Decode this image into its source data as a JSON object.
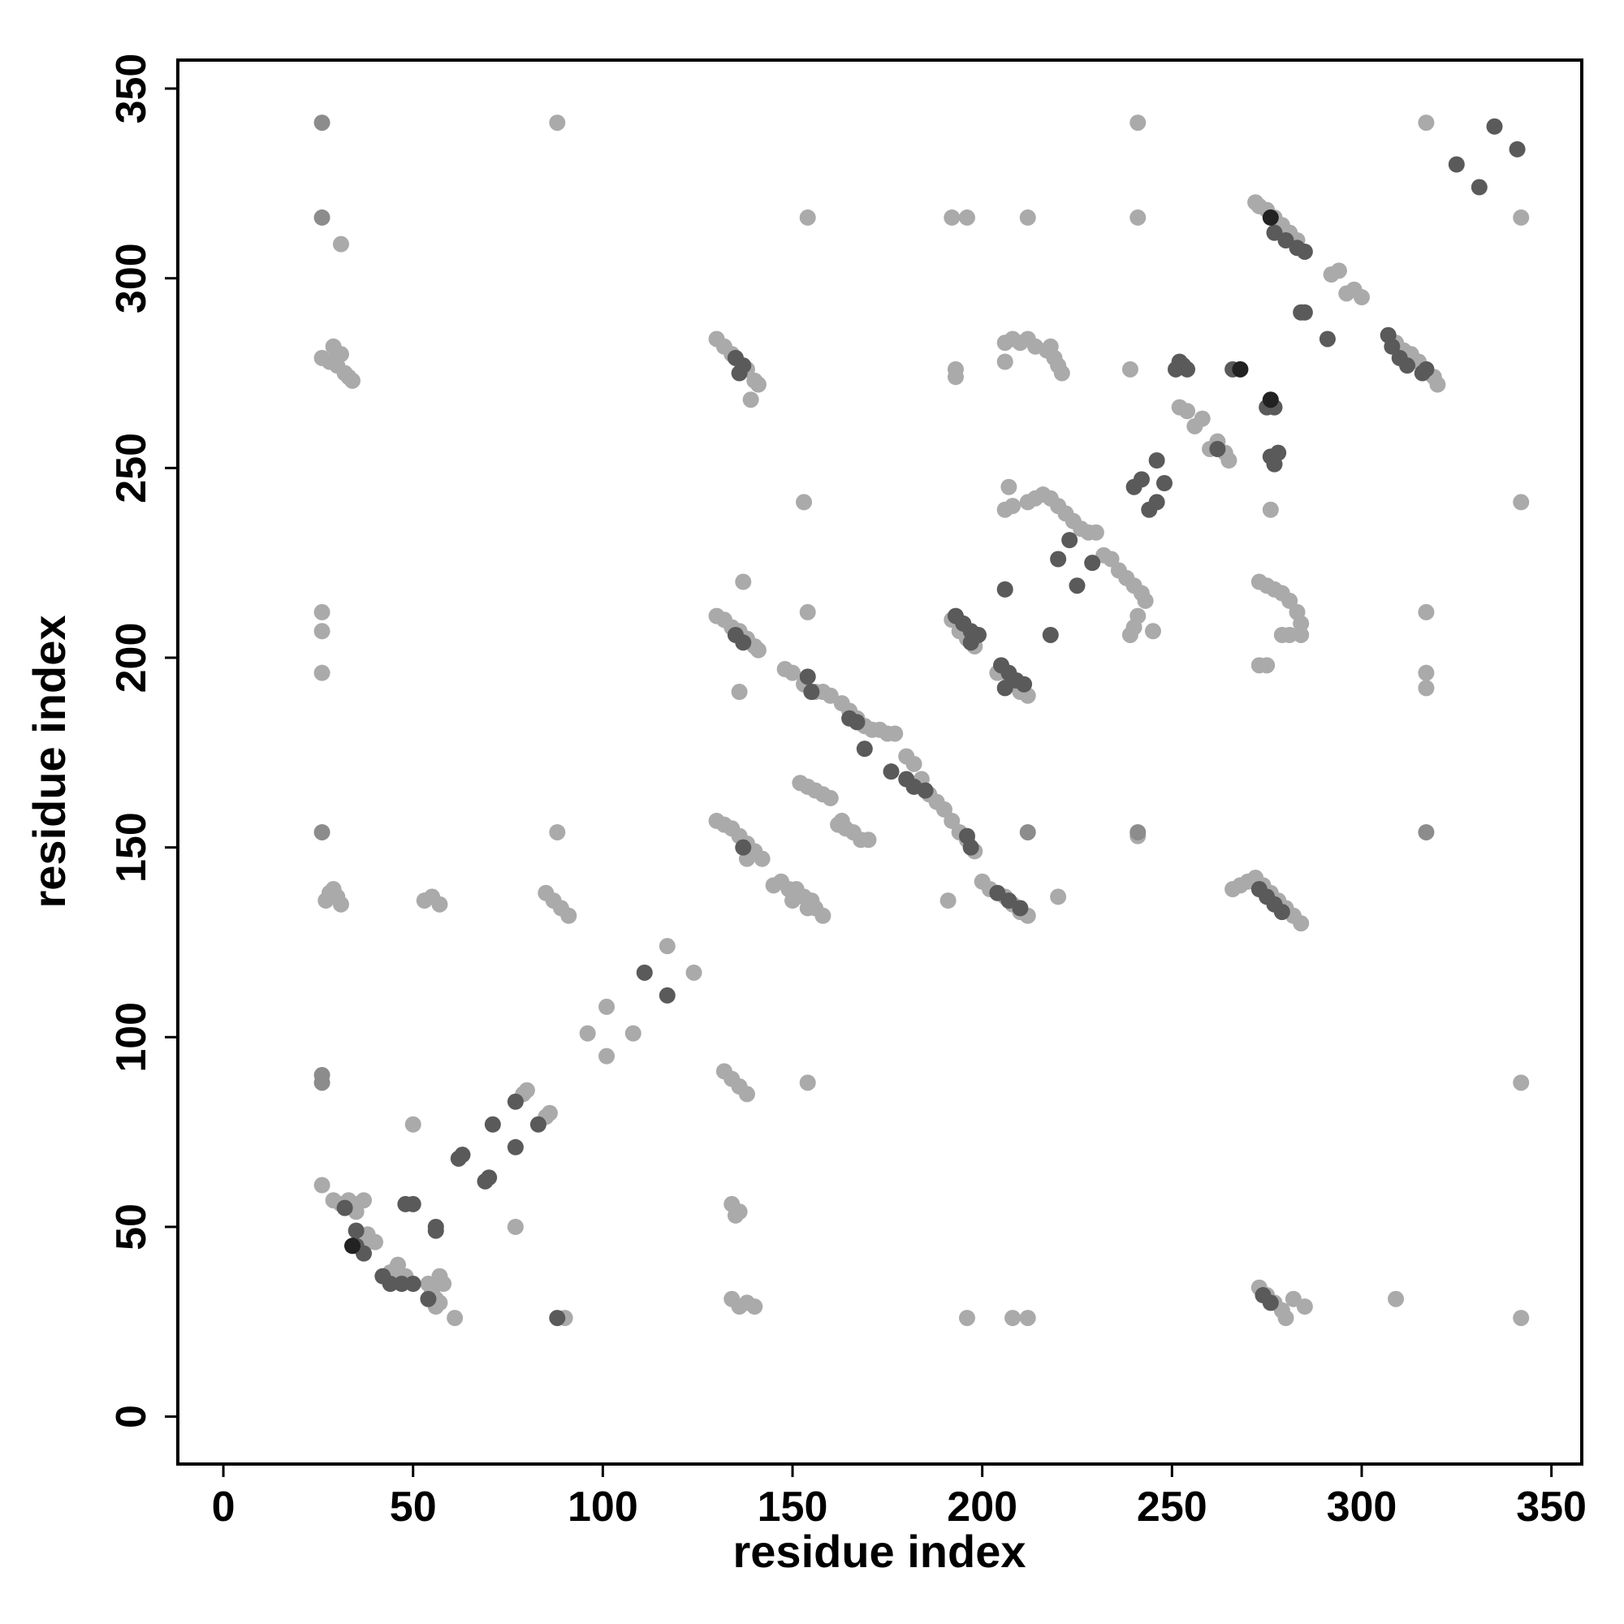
{
  "chart_data": {
    "type": "scatter",
    "xlabel": "residue index",
    "ylabel": "residue index",
    "xlim": [
      -12,
      358
    ],
    "ylim": [
      -12.5,
      357.5
    ],
    "xticks": [
      0,
      50,
      100,
      150,
      200,
      250,
      300,
      350
    ],
    "yticks": [
      0,
      50,
      100,
      150,
      200,
      250,
      300,
      350
    ],
    "grid": false,
    "series": [
      {
        "color": "#aaaaaa",
        "x": [
          88,
          241,
          317,
          154,
          192,
          196,
          212,
          241,
          342,
          31,
          26,
          28,
          29,
          30,
          31,
          32,
          33,
          34,
          272,
          273,
          275,
          277,
          279,
          281,
          283,
          292,
          294,
          296,
          298,
          300,
          309,
          311,
          313,
          315,
          317,
          319,
          320,
          130,
          132,
          134,
          138,
          140,
          141,
          139,
          193,
          193,
          206,
          206,
          208,
          210,
          212,
          214,
          217,
          218,
          219,
          220,
          221,
          239,
          252,
          254,
          256,
          258,
          260,
          262,
          264,
          265,
          276,
          207,
          206,
          208,
          212,
          214,
          216,
          218,
          220,
          222,
          224,
          226,
          228,
          230,
          232,
          234,
          236,
          238,
          240,
          242,
          243,
          241,
          240,
          245,
          239,
          153,
          342,
          273,
          275,
          277,
          279,
          281,
          283,
          284,
          284,
          281,
          279,
          273,
          275,
          130,
          132,
          134,
          136,
          138,
          140,
          141,
          137,
          136,
          26,
          26,
          26,
          317,
          317,
          317,
          154,
          192,
          194,
          196,
          198,
          204,
          207,
          210,
          212,
          148,
          150,
          153,
          156,
          158,
          160,
          163,
          165,
          167,
          169,
          171,
          173,
          175,
          177,
          180,
          182,
          184,
          186,
          188,
          190,
          192,
          194,
          196,
          198,
          152,
          154,
          156,
          158,
          160,
          162,
          164,
          166,
          168,
          170,
          163,
          130,
          132,
          134,
          136,
          138,
          140,
          142,
          138,
          88,
          191,
          241,
          145,
          147,
          149,
          151,
          153,
          155,
          156,
          158,
          150,
          154,
          200,
          202,
          204,
          206,
          208,
          210,
          212,
          220,
          266,
          268,
          270,
          272,
          274,
          276,
          278,
          280,
          282,
          284,
          27,
          28,
          29,
          30,
          31,
          53,
          55,
          57,
          85,
          87,
          89,
          91,
          117,
          124,
          101,
          108,
          96,
          101,
          132,
          134,
          136,
          138,
          154,
          342,
          79,
          80,
          85,
          86,
          77,
          50,
          26,
          29,
          31,
          33,
          35,
          37,
          35,
          38,
          40,
          38,
          44,
          46,
          48,
          54,
          55,
          56,
          57,
          58,
          57,
          56,
          61,
          90,
          134,
          135,
          136,
          134,
          136,
          138,
          140,
          196,
          208,
          212,
          273,
          275,
          277,
          279,
          280,
          282,
          285,
          309,
          342
        ],
        "values": [
          341,
          341,
          341,
          316,
          316,
          316,
          316,
          316,
          316,
          309,
          279,
          278,
          282,
          277,
          280,
          275,
          274,
          273,
          320,
          319,
          318,
          316,
          314,
          312,
          310,
          301,
          302,
          296,
          297,
          295,
          283,
          281,
          280,
          278,
          276,
          274,
          272,
          284,
          282,
          280,
          276,
          273,
          272,
          268,
          276,
          274,
          278,
          283,
          284,
          283,
          284,
          282,
          281,
          282,
          279,
          277,
          275,
          276,
          266,
          265,
          261,
          263,
          255,
          257,
          254,
          252,
          239,
          245,
          239,
          240,
          241,
          242,
          243,
          242,
          240,
          238,
          236,
          234,
          233,
          233,
          227,
          226,
          223,
          221,
          219,
          217,
          215,
          211,
          208,
          207,
          206,
          241,
          241,
          220,
          219,
          218,
          217,
          215,
          212,
          209,
          206,
          206,
          206,
          198,
          198,
          211,
          210,
          208,
          207,
          205,
          203,
          202,
          220,
          191,
          212,
          207,
          196,
          212,
          196,
          192,
          212,
          210,
          207,
          205,
          203,
          196,
          193,
          191,
          190,
          197,
          196,
          193,
          191,
          191,
          190,
          188,
          186,
          184,
          182,
          181,
          181,
          180,
          180,
          174,
          172,
          168,
          164,
          162,
          160,
          157,
          154,
          152,
          149,
          167,
          166,
          165,
          164,
          163,
          156,
          155,
          154,
          152,
          152,
          157,
          157,
          156,
          155,
          153,
          151,
          149,
          147,
          147,
          154,
          136,
          153,
          140,
          141,
          139,
          139,
          137,
          136,
          134,
          132,
          136,
          134,
          141,
          139,
          138,
          137,
          135,
          133,
          132,
          137,
          139,
          140,
          141,
          142,
          140,
          138,
          136,
          134,
          132,
          130,
          136,
          138,
          139,
          137,
          135,
          136,
          137,
          135,
          138,
          136,
          134,
          132,
          124,
          117,
          108,
          101,
          101,
          95,
          91,
          89,
          87,
          85,
          88,
          88,
          85,
          86,
          79,
          80,
          50,
          77,
          61,
          57,
          56,
          57,
          56,
          57,
          54,
          46,
          46,
          48,
          38,
          40,
          37,
          35,
          33,
          31,
          37,
          35,
          30,
          29,
          26,
          26,
          56,
          53,
          54,
          31,
          29,
          30,
          29,
          26,
          26,
          26,
          34,
          32,
          30,
          28,
          26,
          31,
          29,
          31,
          26
        ]
      },
      {
        "color": "#8c8c8c",
        "x": [
          26,
          26,
          26,
          212,
          317,
          26,
          26,
          241
        ],
        "values": [
          341,
          316,
          154,
          154,
          154,
          90,
          88,
          154
        ]
      },
      {
        "color": "#5a5a5a",
        "x": [
          277,
          280,
          283,
          285,
          284,
          285,
          291,
          307,
          308,
          310,
          312,
          316,
          317,
          325,
          331,
          335,
          341,
          135,
          137,
          136,
          251,
          252,
          253,
          254,
          266,
          275,
          277,
          262,
          276,
          277,
          278,
          246,
          240,
          242,
          244,
          246,
          248,
          218,
          220,
          223,
          225,
          229,
          206,
          135,
          137,
          193,
          195,
          197,
          199,
          197,
          205,
          207,
          209,
          211,
          206,
          154,
          155,
          165,
          167,
          169,
          176,
          180,
          182,
          185,
          196,
          197,
          137,
          204,
          207,
          210,
          273,
          275,
          277,
          279,
          111,
          117,
          77,
          77,
          83,
          71,
          62,
          63,
          69,
          70,
          32,
          35,
          35,
          37,
          48,
          50,
          56,
          56,
          42,
          44,
          47,
          50,
          54,
          88,
          274,
          276
        ],
        "values": [
          312,
          310,
          308,
          307,
          291,
          291,
          284,
          285,
          282,
          279,
          277,
          275,
          276,
          330,
          324,
          340,
          334,
          279,
          277,
          275,
          276,
          278,
          277,
          276,
          276,
          266,
          266,
          255,
          253,
          251,
          254,
          252,
          245,
          247,
          239,
          241,
          246,
          206,
          226,
          231,
          219,
          225,
          218,
          206,
          204,
          211,
          209,
          207,
          206,
          204,
          198,
          196,
          194,
          193,
          192,
          195,
          191,
          184,
          183,
          176,
          170,
          168,
          166,
          165,
          153,
          150,
          150,
          138,
          136,
          134,
          139,
          137,
          135,
          133,
          117,
          111,
          83,
          71,
          77,
          77,
          68,
          69,
          62,
          63,
          55,
          49,
          45,
          43,
          56,
          56,
          50,
          49,
          37,
          35,
          35,
          35,
          31,
          26,
          32,
          30
        ]
      },
      {
        "color": "#222222",
        "x": [
          276,
          268,
          276,
          34
        ],
        "values": [
          316,
          276,
          268,
          45
        ]
      }
    ]
  }
}
